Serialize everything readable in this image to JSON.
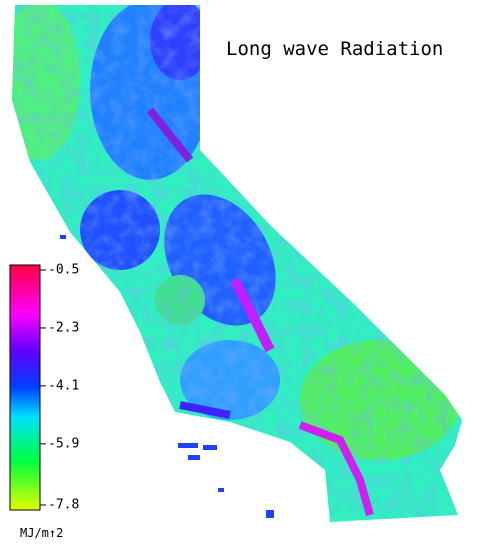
{
  "title": "Long wave Radiation",
  "colorbar": {
    "lim": [
      -7.8,
      -0.5
    ],
    "ticks": [
      -0.5,
      -2.3,
      -4.1,
      -5.9,
      -7.8
    ],
    "unit": "MJ/m↑2"
  }
}
